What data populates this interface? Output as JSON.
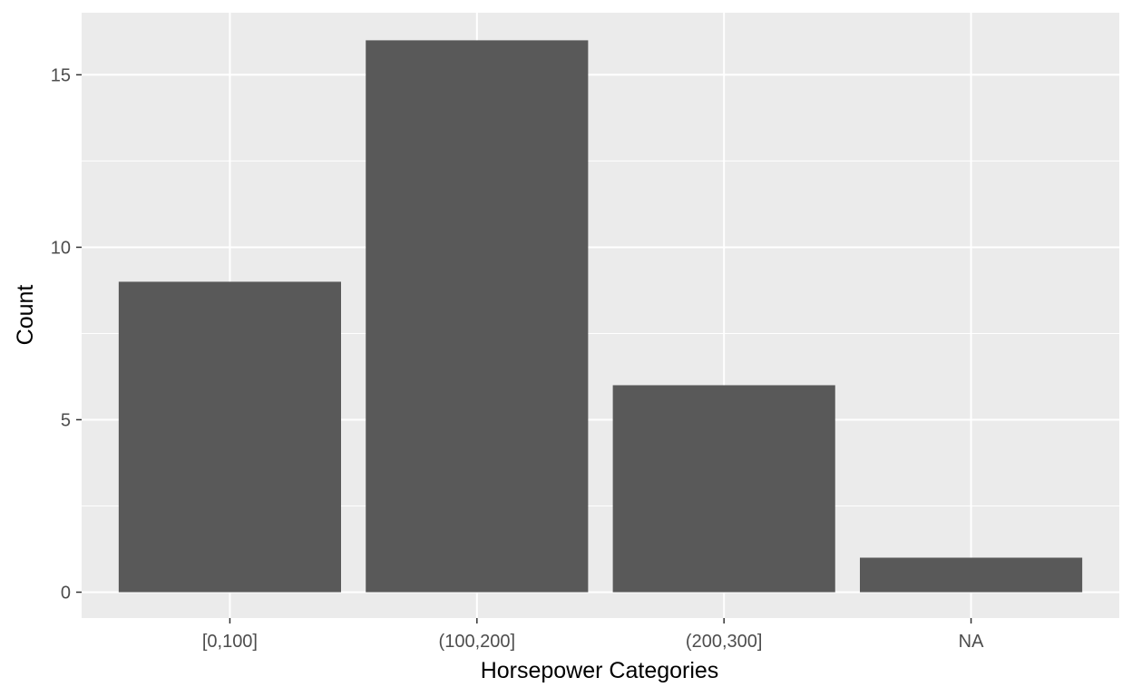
{
  "chart_data": {
    "type": "bar",
    "categories": [
      "[0,100]",
      "(100,200]",
      "(200,300]",
      "NA"
    ],
    "values": [
      9,
      16,
      6,
      1
    ],
    "title": "",
    "xlabel": "Horsepower Categories",
    "ylabel": "Count",
    "ylim": [
      -0.75,
      16.8
    ],
    "yticks": [
      0,
      5,
      10,
      15
    ],
    "ytick_labels": [
      "0",
      "5",
      "10",
      "15"
    ],
    "grid": true,
    "legend": "none"
  },
  "colors": {
    "panel_background": "#ebebeb",
    "grid": "#ffffff",
    "bar_fill": "#595959",
    "tick_label": "#4d4d4d",
    "axis_title": "#000000"
  }
}
